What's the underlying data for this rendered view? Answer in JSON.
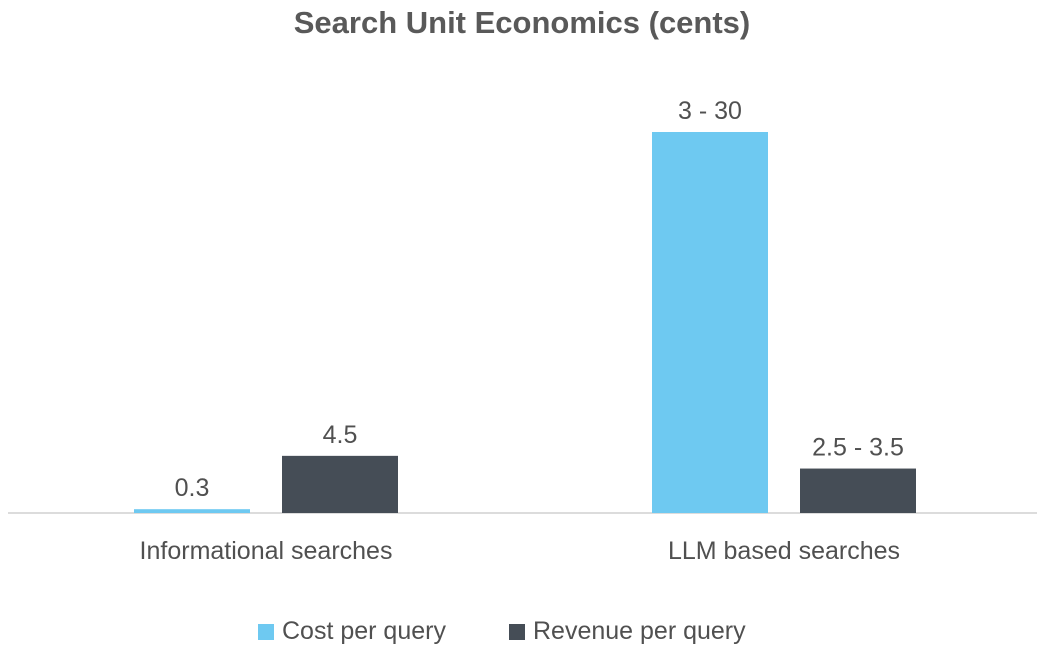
{
  "chart_data": {
    "type": "bar",
    "title": "Search Unit Economics (cents)",
    "categories": [
      "Informational searches",
      "LLM based searches"
    ],
    "series": [
      {
        "name": "Cost per query",
        "color": "#6EC9F1",
        "values": [
          0.3,
          30
        ],
        "data_labels": [
          "0.3",
          "3 - 30"
        ]
      },
      {
        "name": "Revenue per query",
        "color": "#454D56",
        "values": [
          4.5,
          3.5
        ],
        "data_labels": [
          "4.5",
          "2.5 - 3.5"
        ]
      }
    ],
    "ylim": [
      0,
      30
    ],
    "grid": false,
    "legend_position": "bottom",
    "axis_color": "#d0d0d0",
    "text_color": "#505050"
  }
}
